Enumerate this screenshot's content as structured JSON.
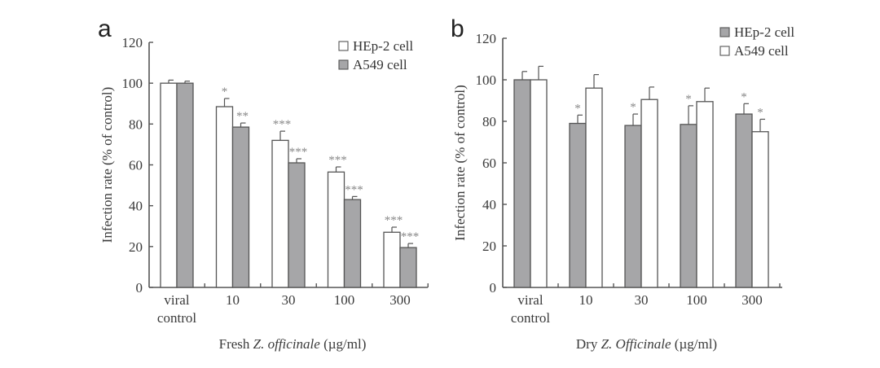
{
  "chart_data": [
    {
      "panel": "a",
      "type": "bar",
      "title": "",
      "xlabel_prefix": "Fresh ",
      "xlabel_italic": "Z. officinale",
      "xlabel_suffix": " (µg/ml)",
      "ylabel": "Infection rate (% of control)",
      "ylim": [
        0,
        120
      ],
      "yticks": [
        0,
        20,
        40,
        60,
        80,
        100,
        120
      ],
      "categories": [
        [
          "viral",
          "control"
        ],
        [
          "10"
        ],
        [
          "30"
        ],
        [
          "100"
        ],
        [
          "300"
        ]
      ],
      "legend_position": "top-right",
      "series": [
        {
          "name": "HEp-2 cell",
          "color": "#ffffff",
          "values": [
            100,
            88.5,
            72,
            56.5,
            27
          ],
          "errors": [
            1.5,
            4,
            4.5,
            2.5,
            2.5
          ],
          "significance": [
            "",
            "*",
            "***",
            "***",
            "***"
          ]
        },
        {
          "name": "A549 cell",
          "color": "#a6a6a8",
          "values": [
            100,
            78.5,
            61,
            43,
            19.5
          ],
          "errors": [
            1,
            2,
            2,
            1.5,
            2
          ],
          "significance": [
            "",
            "**",
            "***",
            "***",
            "***"
          ]
        }
      ]
    },
    {
      "panel": "b",
      "type": "bar",
      "title": "",
      "xlabel_prefix": "Dry ",
      "xlabel_italic": "Z. Officinale",
      "xlabel_suffix": " (µg/ml)",
      "ylabel": "Infection rate (% of control)",
      "ylim": [
        0,
        120
      ],
      "yticks": [
        0,
        20,
        40,
        60,
        80,
        100,
        120
      ],
      "categories": [
        [
          "viral",
          "control"
        ],
        [
          "10"
        ],
        [
          "30"
        ],
        [
          "100"
        ],
        [
          "300"
        ]
      ],
      "legend_position": "top-right",
      "series": [
        {
          "name": "HEp-2 cell",
          "color": "#a6a6a8",
          "values": [
            100,
            79,
            78,
            78.5,
            83.5
          ],
          "errors": [
            4,
            4,
            5.5,
            9,
            5
          ],
          "significance": [
            "",
            "*",
            "*",
            "*",
            "*"
          ]
        },
        {
          "name": "A549 cell",
          "color": "#ffffff",
          "values": [
            100,
            96,
            90.5,
            89.5,
            75
          ],
          "errors": [
            6.5,
            6.5,
            6,
            6.5,
            6
          ],
          "significance": [
            "",
            "",
            "",
            "",
            "*"
          ]
        }
      ]
    }
  ]
}
